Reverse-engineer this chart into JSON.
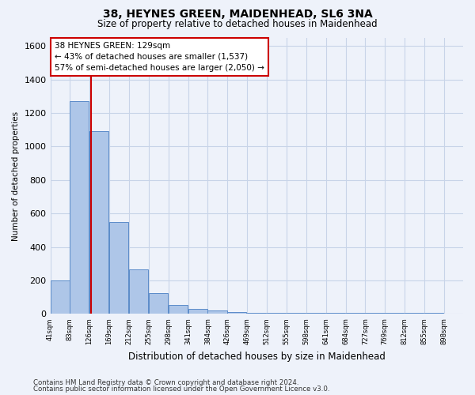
{
  "title1": "38, HEYNES GREEN, MAIDENHEAD, SL6 3NA",
  "title2": "Size of property relative to detached houses in Maidenhead",
  "xlabel": "Distribution of detached houses by size in Maidenhead",
  "ylabel": "Number of detached properties",
  "bins": [
    "41sqm",
    "83sqm",
    "126sqm",
    "169sqm",
    "212sqm",
    "255sqm",
    "298sqm",
    "341sqm",
    "384sqm",
    "426sqm",
    "469sqm",
    "512sqm",
    "555sqm",
    "598sqm",
    "641sqm",
    "684sqm",
    "727sqm",
    "769sqm",
    "812sqm",
    "855sqm",
    "898sqm"
  ],
  "bin_edges": [
    41,
    83,
    126,
    169,
    212,
    255,
    298,
    341,
    384,
    426,
    469,
    512,
    555,
    598,
    641,
    684,
    727,
    769,
    812,
    855,
    898
  ],
  "bar_heights": [
    200,
    1270,
    1090,
    550,
    265,
    125,
    55,
    30,
    20,
    10,
    5,
    5,
    5,
    5,
    5,
    5,
    5,
    5,
    5,
    5
  ],
  "bar_color": "#aec6e8",
  "bar_edgecolor": "#5b8bc9",
  "grid_color": "#c8d4e8",
  "vline_x": 129,
  "vline_color": "#cc0000",
  "annotation_line1": "38 HEYNES GREEN: 129sqm",
  "annotation_line2": "← 43% of detached houses are smaller (1,537)",
  "annotation_line3": "57% of semi-detached houses are larger (2,050) →",
  "annotation_box_color": "#ffffff",
  "annotation_box_edgecolor": "#cc0000",
  "ylim": [
    0,
    1650
  ],
  "yticks": [
    0,
    200,
    400,
    600,
    800,
    1000,
    1200,
    1400,
    1600
  ],
  "footer1": "Contains HM Land Registry data © Crown copyright and database right 2024.",
  "footer2": "Contains public sector information licensed under the Open Government Licence v3.0.",
  "bg_color": "#eef2fa",
  "title_fontsize": 10,
  "subtitle_fontsize": 8.5
}
